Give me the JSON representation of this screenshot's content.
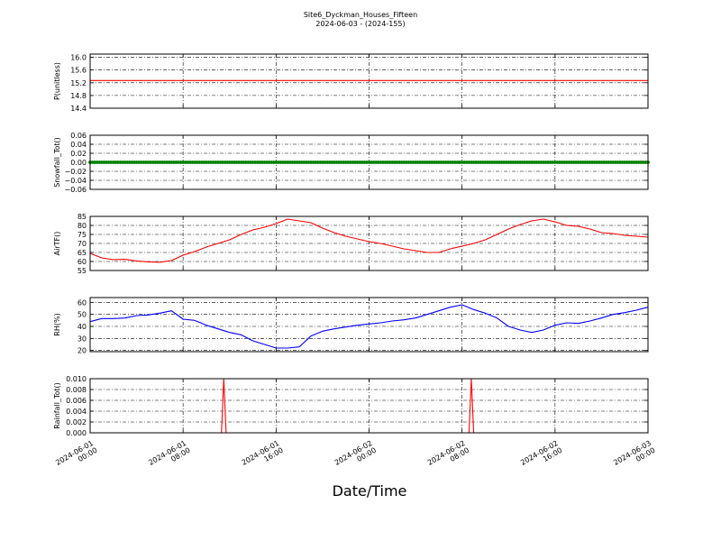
{
  "figure": {
    "title_line1": "Site6_Dyckman_Houses_Fifteen",
    "title_line2": "2024-06-03 - (2024-155)",
    "xlabel": "Date/Time",
    "x_tick_labels": [
      [
        "2024-06-01",
        "00:00"
      ],
      [
        "2024-06-01",
        "08:00"
      ],
      [
        "2024-06-01",
        "16:00"
      ],
      [
        "2024-06-02",
        "00:00"
      ],
      [
        "2024-06-02",
        "08:00"
      ],
      [
        "2024-06-02",
        "16:00"
      ],
      [
        "2024-06-03",
        "00:00"
      ]
    ]
  },
  "chart_data": [
    {
      "type": "line",
      "ylabel": "P(unitless)",
      "color": "#ff0000",
      "marker": "none",
      "ylim": [
        14.4,
        16.1
      ],
      "yticks": [
        14.4,
        14.8,
        15.2,
        15.6,
        16.0
      ],
      "ytick_labels": [
        "14.4",
        "14.8",
        "15.2",
        "15.6",
        "16.0"
      ],
      "grid": true,
      "x_hours": [
        0,
        48
      ],
      "y": [
        15.27,
        15.27
      ]
    },
    {
      "type": "scatter",
      "ylabel": "Snowfall_Tot()",
      "color": "#008000",
      "marker": "dot",
      "ylim": [
        -0.06,
        0.06
      ],
      "yticks": [
        -0.06,
        -0.04,
        -0.02,
        0.0,
        0.02,
        0.04,
        0.06
      ],
      "ytick_labels": [
        "−0.06",
        "−0.04",
        "−0.02",
        "0.00",
        "0.02",
        "0.04",
        "0.06"
      ],
      "grid": true,
      "constant_value": 0.0
    },
    {
      "type": "line",
      "ylabel": "AirTF()",
      "color": "#ff0000",
      "marker": "none",
      "ylim": [
        55,
        85
      ],
      "yticks": [
        55,
        60,
        65,
        70,
        75,
        80,
        85
      ],
      "ytick_labels": [
        "55",
        "60",
        "65",
        "70",
        "75",
        "80",
        "85"
      ],
      "grid": true,
      "x_hours": [
        0,
        1,
        2,
        3,
        4,
        5,
        6,
        7,
        8,
        9,
        10,
        11,
        12,
        13,
        14,
        15,
        16,
        17,
        18,
        19,
        20,
        21,
        22,
        23,
        24,
        25,
        26,
        27,
        28,
        29,
        30,
        31,
        32,
        33,
        34,
        35,
        36,
        37,
        38,
        39,
        40,
        41,
        42,
        43,
        44,
        45,
        46,
        47,
        48
      ],
      "y": [
        64.5,
        62.0,
        61.0,
        61.2,
        60.3,
        59.8,
        59.6,
        60.5,
        63.5,
        65.5,
        68.0,
        70.0,
        72.0,
        75.0,
        77.5,
        79.0,
        81.0,
        83.5,
        82.5,
        81.5,
        78.5,
        76.0,
        74.0,
        72.5,
        71.0,
        70.0,
        68.5,
        67.0,
        66.0,
        65.0,
        65.0,
        67.0,
        68.5,
        70.0,
        72.0,
        75.0,
        78.0,
        80.5,
        82.5,
        83.5,
        82.0,
        80.0,
        79.5,
        78.0,
        76.0,
        75.5,
        74.5,
        74.0,
        73.5
      ]
    },
    {
      "type": "line",
      "ylabel": "RH(%)",
      "color": "#0000ff",
      "marker": "none",
      "ylim": [
        19,
        64
      ],
      "yticks": [
        20,
        30,
        40,
        50,
        60
      ],
      "ytick_labels": [
        "20",
        "30",
        "40",
        "50",
        "60"
      ],
      "grid": true,
      "x_hours": [
        0,
        1,
        2,
        3,
        4,
        5,
        6,
        7,
        8,
        9,
        10,
        11,
        12,
        13,
        14,
        15,
        16,
        17,
        18,
        19,
        20,
        21,
        22,
        23,
        24,
        25,
        26,
        27,
        28,
        29,
        30,
        31,
        32,
        33,
        34,
        35,
        36,
        37,
        38,
        39,
        40,
        41,
        42,
        43,
        44,
        45,
        46,
        47,
        48
      ],
      "y": [
        44,
        46.5,
        46.5,
        47,
        49,
        49.5,
        51,
        53,
        46,
        45,
        41,
        38,
        35,
        33,
        28,
        25,
        22,
        22,
        23,
        32,
        36,
        38,
        39.5,
        41,
        42,
        43,
        44.5,
        45.5,
        47,
        50,
        53,
        56,
        58,
        54,
        51,
        47,
        40,
        37,
        35,
        37,
        41,
        43,
        42.5,
        44.5,
        47,
        50,
        51.5,
        53.5,
        56
      ]
    },
    {
      "type": "line",
      "ylabel": "Rainfall_Tot()",
      "color": "#ff0000",
      "marker": "none",
      "ylim": [
        0,
        0.01
      ],
      "yticks": [
        0.0,
        0.002,
        0.004,
        0.006,
        0.008,
        0.01
      ],
      "ytick_labels": [
        "0.000",
        "0.002",
        "0.004",
        "0.006",
        "0.008",
        "0.010"
      ],
      "grid": true,
      "x_hours": [
        0,
        11.3,
        11.5,
        11.7,
        32.6,
        32.8,
        33.0,
        48
      ],
      "y": [
        0,
        0,
        0.01,
        0,
        0,
        0.01,
        0,
        0
      ]
    }
  ]
}
